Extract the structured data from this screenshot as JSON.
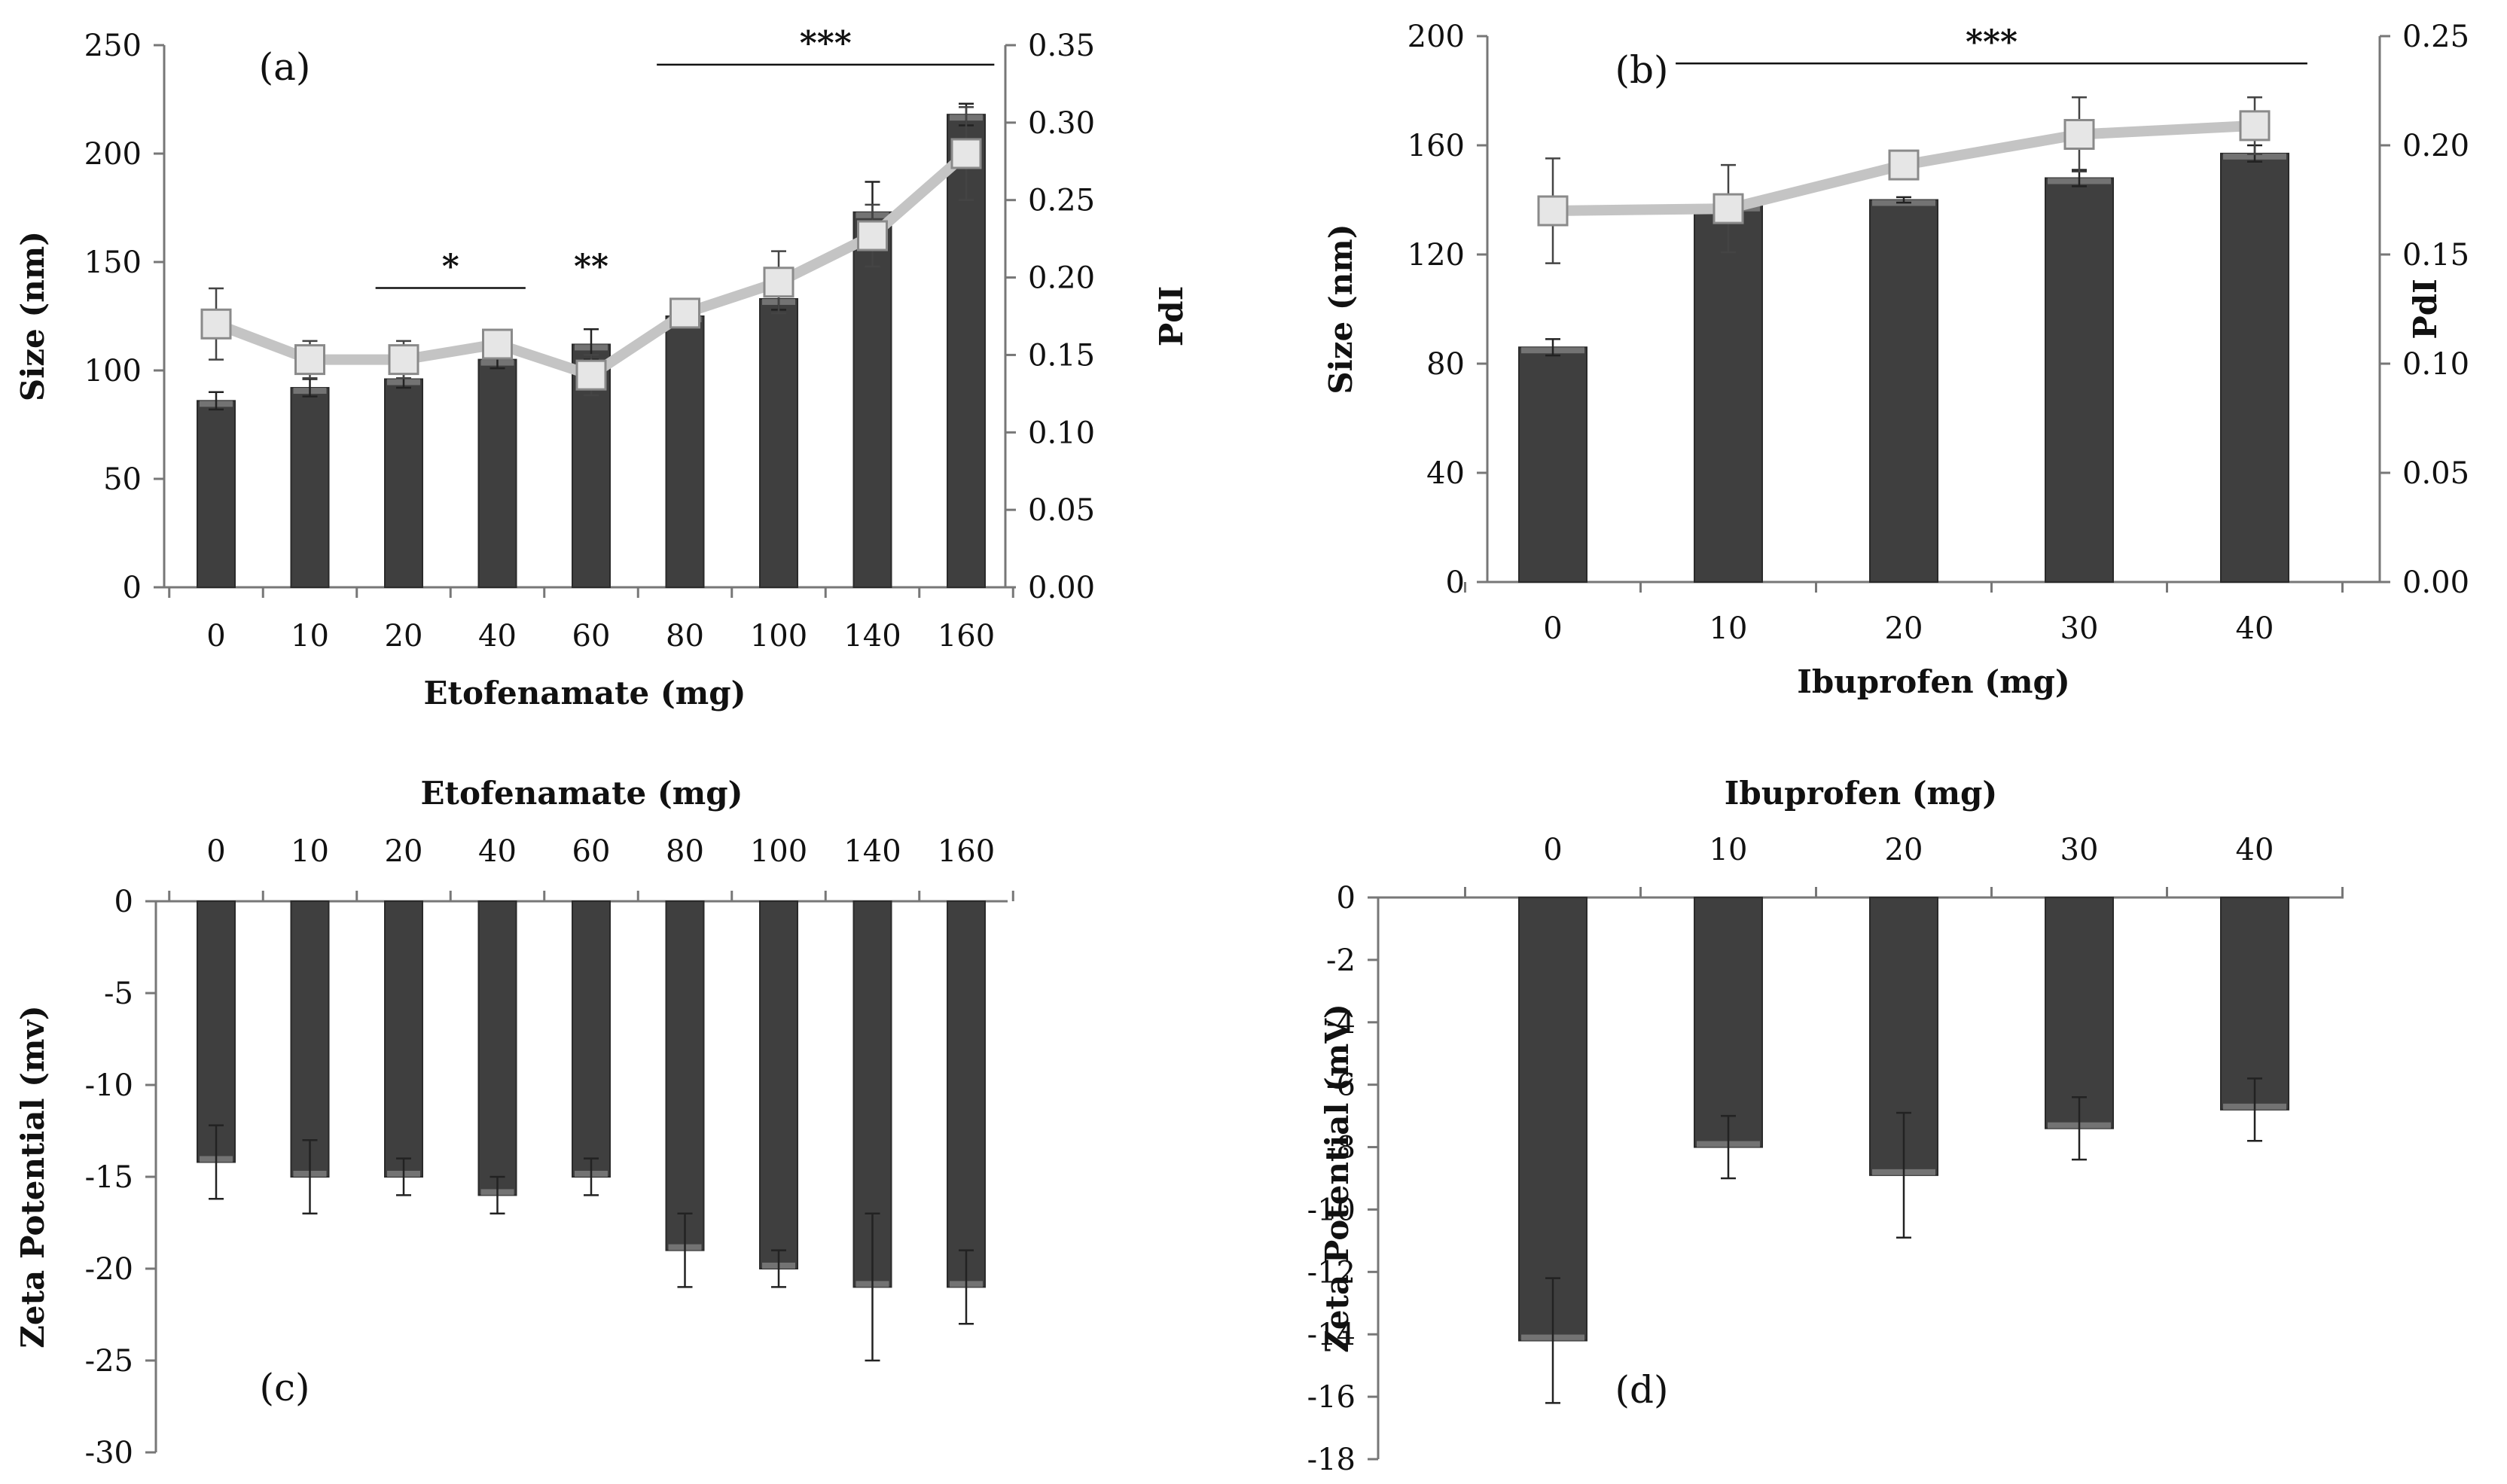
{
  "colors": {
    "bar": "#3f3f3f",
    "bar_highlight": "#8a8a8a",
    "pdi_line": "#c4c4c4",
    "marker_fill": "#e6e6e6",
    "marker_stroke": "#8a8a8a",
    "axis": "#777777",
    "text": "#111111"
  },
  "chart_data": [
    {
      "id": "a",
      "panel_label": "(a)",
      "type": "bar+line",
      "xlabel": "Etofenamate (mg)",
      "ylabel": "Size (nm)",
      "y2label": "PdI",
      "categories": [
        "0",
        "10",
        "20",
        "40",
        "60",
        "80",
        "100",
        "140",
        "160"
      ],
      "ylim": [
        0,
        250
      ],
      "yticks": [
        0,
        50,
        100,
        150,
        200,
        250
      ],
      "ytick_labels": [
        "0",
        "50",
        "100",
        "150",
        "200",
        "250"
      ],
      "y2lim": [
        0,
        0.35
      ],
      "y2ticks": [
        0,
        0.05,
        0.1,
        0.15,
        0.2,
        0.25,
        0.3,
        0.35
      ],
      "y2tick_labels": [
        "0.00",
        "0.05",
        "0.10",
        "0.15",
        "0.20",
        "0.25",
        "0.30",
        "0.35"
      ],
      "series": [
        {
          "name": "Size (nm)",
          "kind": "bar",
          "values": [
            86,
            92,
            96,
            105,
            112,
            125,
            133,
            173,
            218
          ],
          "errors": [
            4,
            4,
            4,
            4,
            7,
            5,
            5,
            14,
            5
          ]
        },
        {
          "name": "PdI",
          "kind": "line",
          "axis": "y2",
          "values": [
            0.17,
            0.147,
            0.147,
            0.157,
            0.137,
            0.177,
            0.197,
            0.227,
            0.28
          ],
          "errors": [
            0.023,
            0.012,
            0.012,
            0.008,
            0.013,
            0.009,
            0.02,
            0.02,
            0.03
          ]
        }
      ],
      "annotations": [
        {
          "text": "*",
          "from": 2,
          "to": 3,
          "y": 138,
          "line": true
        },
        {
          "text": "**",
          "from": 4,
          "to": 4,
          "y": 138,
          "line": false
        },
        {
          "text": "***",
          "from": 5,
          "to": 8,
          "y": 241,
          "line": true
        }
      ]
    },
    {
      "id": "b",
      "panel_label": "(b)",
      "type": "bar+line",
      "xlabel": "Ibuprofen (mg)",
      "ylabel": "Size (nm)",
      "y2label": "PdI",
      "categories": [
        "0",
        "10",
        "20",
        "30",
        "40"
      ],
      "ylim": [
        0,
        200
      ],
      "yticks": [
        0,
        40,
        80,
        120,
        160,
        200
      ],
      "ytick_labels": [
        "0",
        "40",
        "80",
        "120",
        "160",
        "200"
      ],
      "y2lim": [
        0,
        0.25
      ],
      "y2ticks": [
        0,
        0.05,
        0.1,
        0.15,
        0.2,
        0.25
      ],
      "y2tick_labels": [
        "0.00",
        "0.05",
        "0.10",
        "0.15",
        "0.20",
        "0.25"
      ],
      "series": [
        {
          "name": "Size (nm)",
          "kind": "bar",
          "values": [
            86,
            138,
            140,
            148,
            157
          ],
          "errors": [
            3,
            3,
            1,
            3,
            3
          ]
        },
        {
          "name": "PdI",
          "kind": "line",
          "axis": "y2",
          "values": [
            0.17,
            0.171,
            0.191,
            0.205,
            0.209
          ],
          "errors": [
            0.024,
            0.02,
            0.003,
            0.017,
            0.013
          ]
        }
      ],
      "annotations": [
        {
          "text": "***",
          "from": 1,
          "to": 4,
          "y": 190,
          "line": true
        }
      ]
    },
    {
      "id": "c",
      "panel_label": "(c)",
      "type": "bar",
      "xlabel": "Etofenamate (mg)",
      "xlabel_position": "top",
      "ylabel": "Zeta Potential (mv)",
      "categories": [
        "0",
        "10",
        "20",
        "40",
        "60",
        "80",
        "100",
        "140",
        "160"
      ],
      "ylim": [
        -30,
        0
      ],
      "yticks": [
        0,
        -5,
        -10,
        -15,
        -20,
        -25,
        -30
      ],
      "ytick_labels": [
        "0",
        "-5",
        "-10",
        "-15",
        "-20",
        "-25",
        "-30"
      ],
      "series": [
        {
          "name": "Zeta Potential",
          "kind": "bar",
          "values": [
            -14.2,
            -15,
            -15,
            -16,
            -15,
            -19,
            -20,
            -21,
            -21
          ],
          "errors": [
            2,
            2,
            1,
            1,
            1,
            2,
            1,
            4,
            2
          ]
        }
      ]
    },
    {
      "id": "d",
      "panel_label": "(d)",
      "type": "bar",
      "xlabel": "Ibuprofen (mg)",
      "xlabel_position": "top",
      "ylabel": "Zeta Potential (mV)",
      "categories": [
        "0",
        "10",
        "20",
        "30",
        "40"
      ],
      "ylim": [
        -18,
        0
      ],
      "yticks": [
        0,
        -2,
        -4,
        -6,
        -8,
        -10,
        -12,
        -14,
        -16,
        -18
      ],
      "ytick_labels": [
        "0",
        "-2",
        "-4",
        "-6",
        "-8",
        "-10",
        "-12",
        "-14",
        "-16",
        "-18"
      ],
      "series": [
        {
          "name": "Zeta Potential",
          "kind": "bar",
          "values": [
            -14.2,
            -8,
            -8.9,
            -7.4,
            -6.8
          ],
          "errors": [
            2,
            1,
            2,
            1,
            1
          ]
        }
      ]
    }
  ]
}
